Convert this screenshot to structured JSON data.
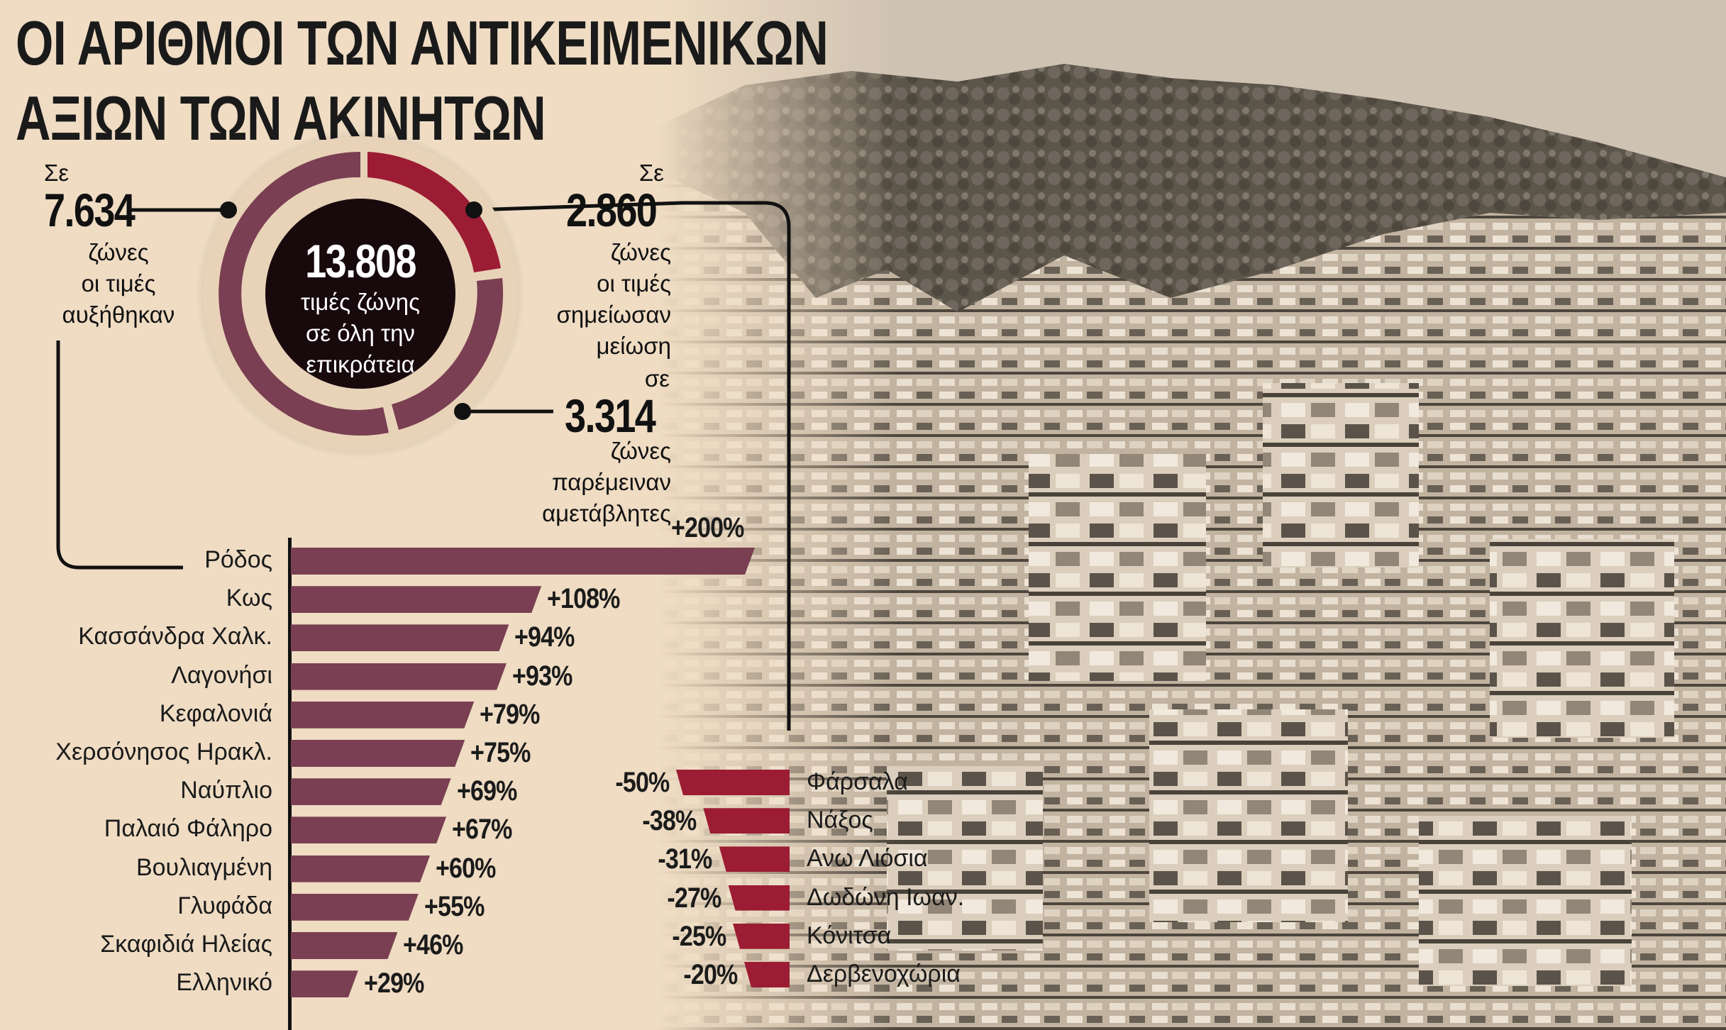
{
  "title": {
    "line1": "ΟΙ ΑΡΙΘΜΟΙ ΤΩΝ ΑΝΤΙΚΕΙΜΕΝΙΚΩΝ",
    "line2": "ΑΞΙΩΝ ΤΩΝ ΑΚΙΝΗΤΩΝ"
  },
  "donut": {
    "total": "13.808",
    "total_line1": "τιμές ζώνης",
    "total_line2": "σε όλη την",
    "total_line3": "επικράτεια",
    "increased": {
      "pre": "Σε",
      "value": "7.634",
      "line1": "ζώνες",
      "line2": "οι τιμές",
      "line3": "αυξήθηκαν"
    },
    "decreased": {
      "pre": "Σε",
      "value": "2.860",
      "line1": "ζώνες",
      "line2": "οι τιμές",
      "line3": "σημείωσαν",
      "line4": "μείωση"
    },
    "unchanged": {
      "pre": "σε",
      "value": "3.314",
      "line1": "ζώνες",
      "line2": "παρέμειναν",
      "line3": "αμετάβλητες"
    },
    "colors": {
      "increased": "#7a3f52",
      "decreased": "#9c1c33",
      "unchanged": "#7a3f52",
      "center": "#17090c",
      "ring": "#e8d3b8"
    }
  },
  "chart_data": [
    {
      "type": "bar",
      "orientation": "horizontal",
      "categories": [
        "Ρόδος",
        "Κως",
        "Κασσάνδρα Χαλκ.",
        "Λαγονήσι",
        "Κεφαλονιά",
        "Χερσόνησος Ηρακλ.",
        "Ναύπλιο",
        "Παλαιό Φάληρο",
        "Βουλιαγμένη",
        "Γλυφάδα",
        "Σκαφιδιά Ηλείας",
        "Ελληνικό"
      ],
      "values": [
        200,
        108,
        94,
        93,
        79,
        75,
        69,
        67,
        60,
        55,
        46,
        29
      ],
      "labels": [
        "+200%",
        "+108%",
        "+94%",
        "+93%",
        "+79%",
        "+75%",
        "+69%",
        "+67%",
        "+60%",
        "+55%",
        "+46%",
        "+29%"
      ],
      "color": "#7a3f52"
    },
    {
      "type": "bar",
      "orientation": "horizontal",
      "categories": [
        "Φάρσαλα",
        "Νάξος",
        "Ανω Λιόσια",
        "Δωδώνη Ιωαν.",
        "Κόνιτσα",
        "Δερβενοχώρια"
      ],
      "values": [
        -50,
        -38,
        -31,
        -27,
        -25,
        -20
      ],
      "labels": [
        "-50%",
        "-38%",
        "-31%",
        "-27%",
        "-25%",
        "-20%"
      ],
      "color": "#9c1c33"
    }
  ]
}
